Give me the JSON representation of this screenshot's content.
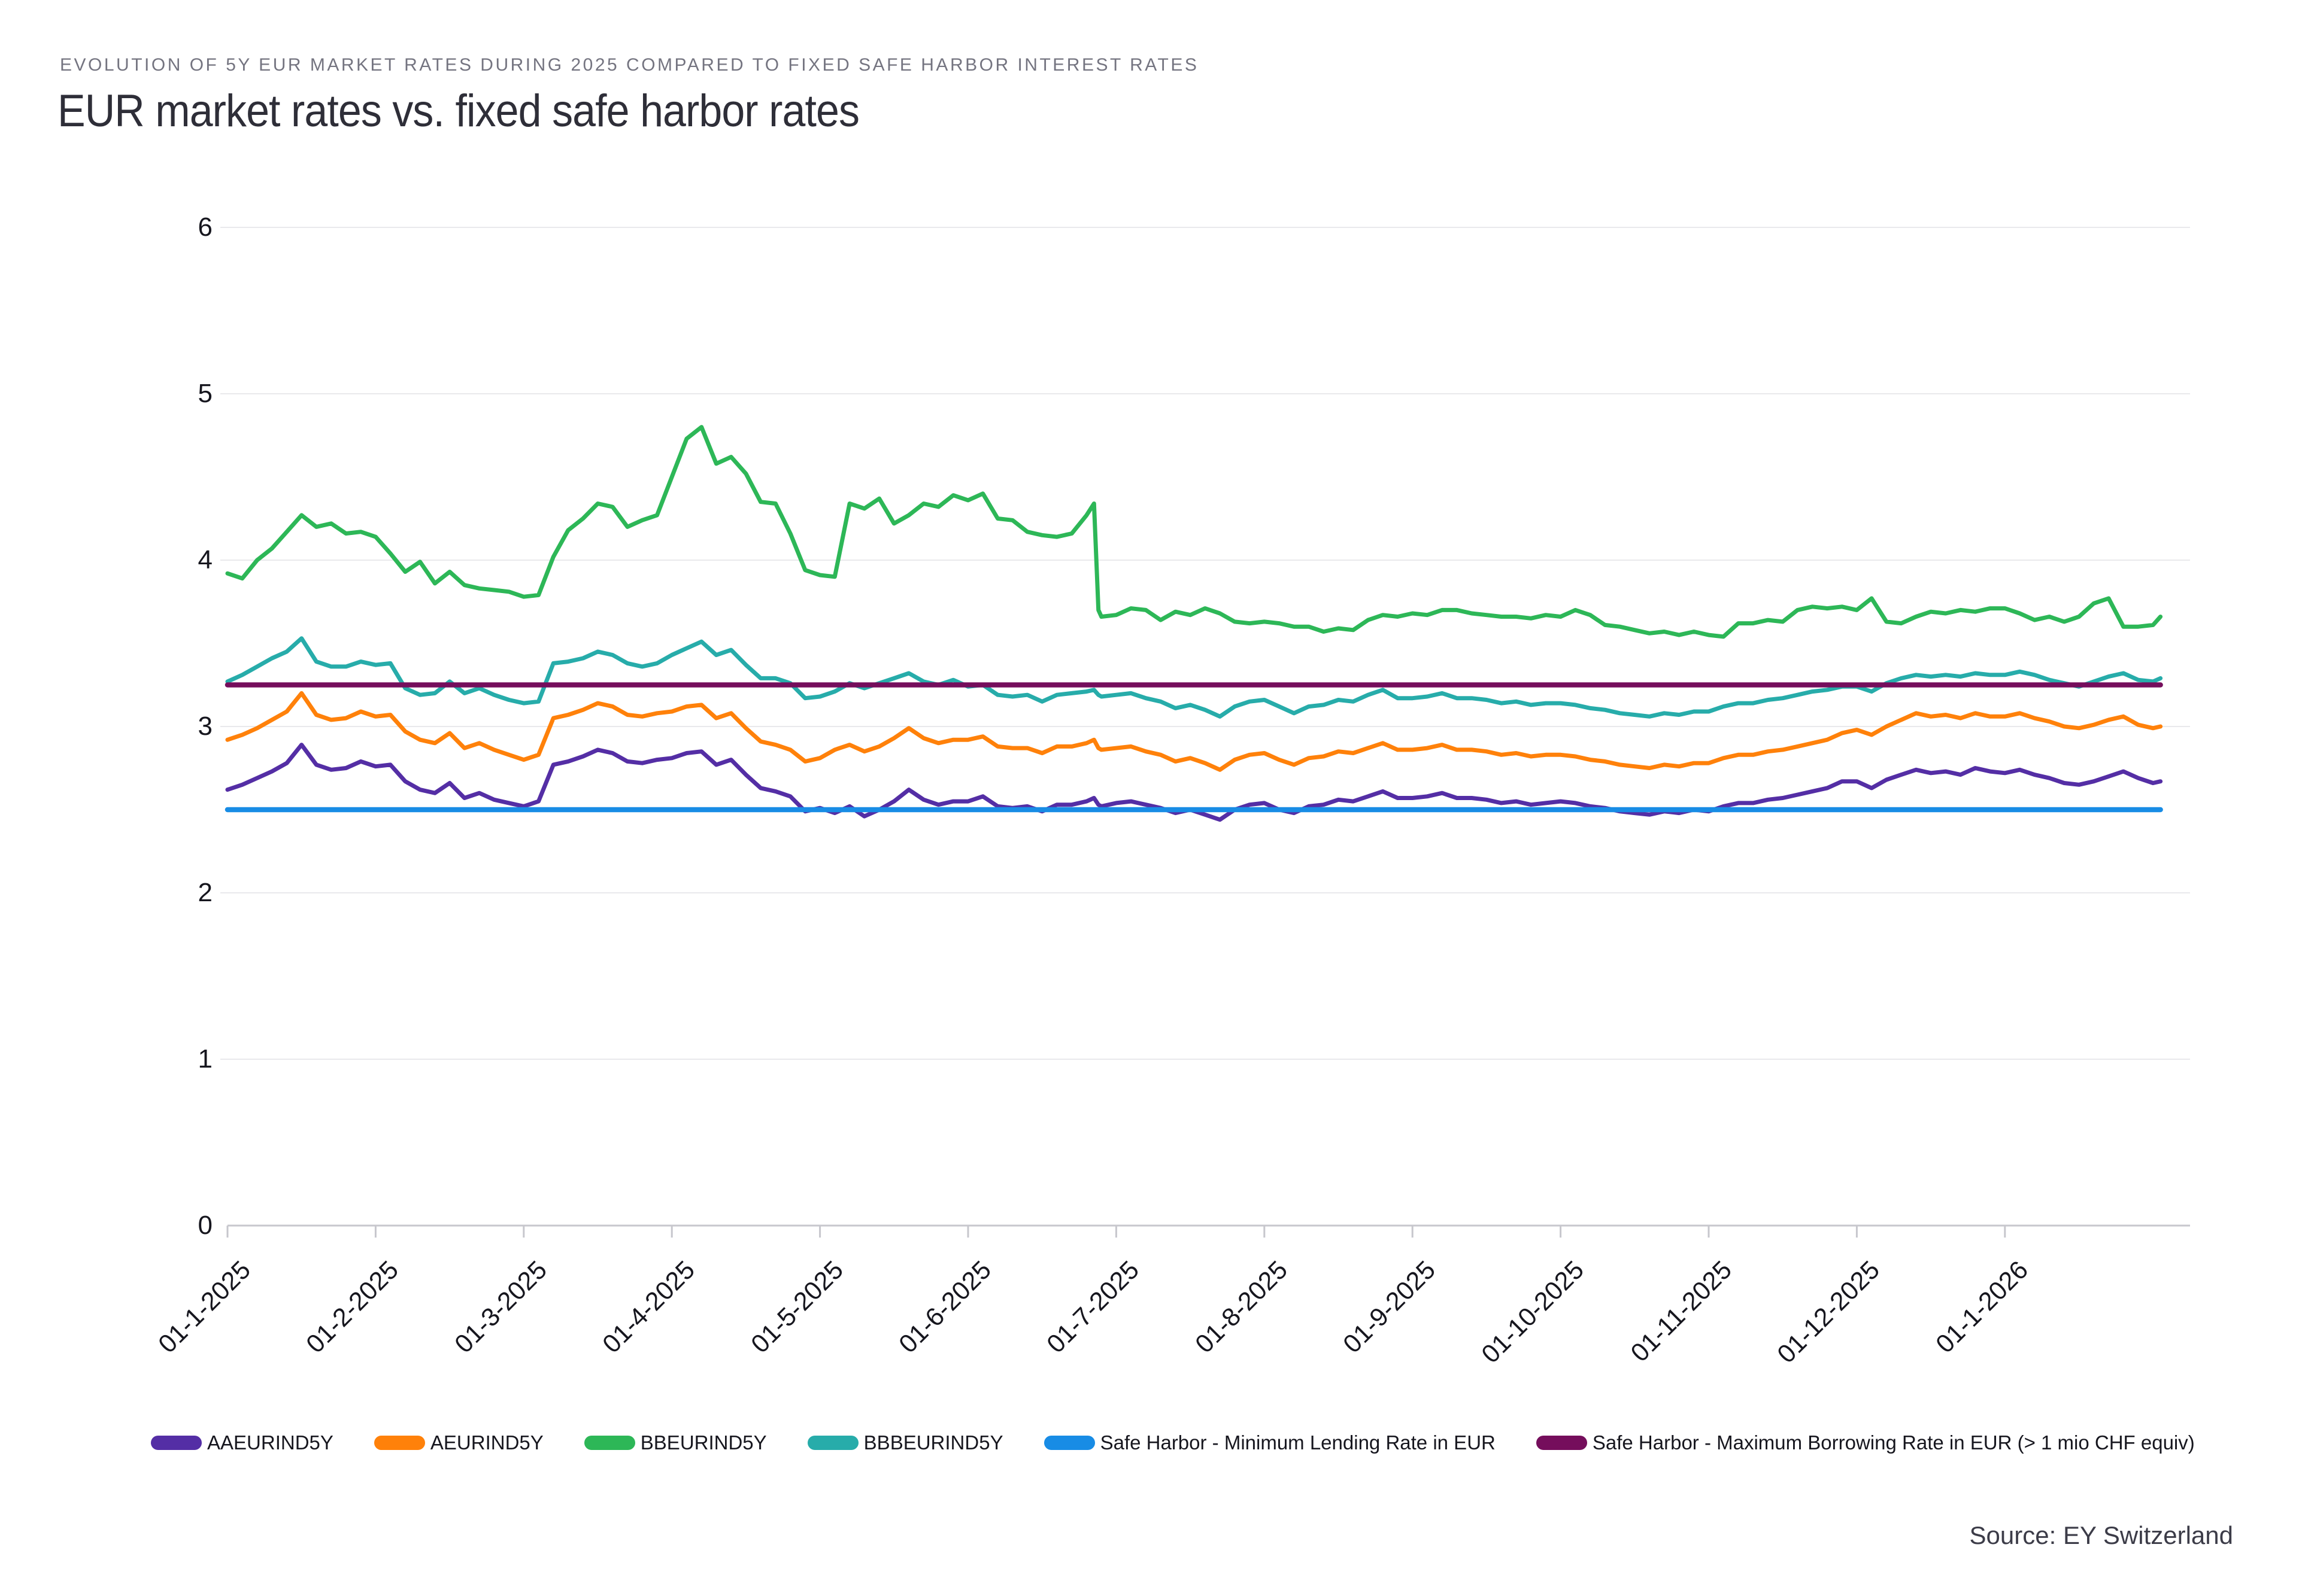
{
  "header": {
    "eyebrow": "EVOLUTION OF 5Y EUR MARKET RATES DURING 2025 COMPARED TO FIXED SAFE HARBOR INTEREST RATES",
    "title": "EUR market rates vs. fixed safe harbor rates"
  },
  "source": {
    "label": "Source: EY Switzerland"
  },
  "chart_data": {
    "type": "line",
    "title": "EUR market rates vs. fixed safe harbor rates",
    "xlabel": "",
    "ylabel": "",
    "x_unit": "months since 2025-01-01",
    "ylim": [
      0,
      6
    ],
    "y_ticks": [
      0,
      1,
      2,
      3,
      4,
      5,
      6
    ],
    "x_tick_positions": [
      0,
      1,
      2,
      3,
      4,
      5,
      6,
      7,
      8,
      9,
      10,
      11,
      12
    ],
    "x_tick_labels": [
      "01-1-2025",
      "01-2-2025",
      "01-3-2025",
      "01-4-2025",
      "01-5-2025",
      "01-6-2025",
      "01-7-2025",
      "01-8-2025",
      "01-9-2025",
      "01-10-2025",
      "01-11-2025",
      "01-12-2025",
      "01-1-2026"
    ],
    "grid": "horizontal",
    "legend_position": "bottom",
    "x": [
      0,
      0.1,
      0.2,
      0.3,
      0.4,
      0.5,
      0.6,
      0.7,
      0.8,
      0.9,
      1.0,
      1.1,
      1.2,
      1.3,
      1.4,
      1.5,
      1.6,
      1.7,
      1.8,
      1.9,
      2.0,
      2.1,
      2.2,
      2.3,
      2.4,
      2.5,
      2.6,
      2.7,
      2.8,
      2.9,
      3.0,
      3.1,
      3.2,
      3.3,
      3.4,
      3.5,
      3.6,
      3.7,
      3.8,
      3.9,
      4.0,
      4.1,
      4.2,
      4.3,
      4.4,
      4.5,
      4.6,
      4.7,
      4.8,
      4.9,
      5.0,
      5.1,
      5.2,
      5.3,
      5.4,
      5.5,
      5.6,
      5.7,
      5.8,
      5.85,
      5.88,
      5.9,
      6.0,
      6.1,
      6.2,
      6.3,
      6.4,
      6.5,
      6.6,
      6.7,
      6.8,
      6.9,
      7.0,
      7.1,
      7.2,
      7.3,
      7.4,
      7.5,
      7.6,
      7.7,
      7.8,
      7.9,
      8.0,
      8.1,
      8.2,
      8.3,
      8.4,
      8.5,
      8.6,
      8.7,
      8.8,
      8.9,
      9.0,
      9.1,
      9.2,
      9.3,
      9.4,
      9.5,
      9.6,
      9.7,
      9.8,
      9.9,
      10.0,
      10.1,
      10.2,
      10.3,
      10.4,
      10.5,
      10.6,
      10.7,
      10.8,
      10.9,
      11.0,
      11.1,
      11.2,
      11.3,
      11.4,
      11.5,
      11.6,
      11.7,
      11.8,
      11.9,
      12.0,
      12.1,
      12.2,
      12.3,
      12.4,
      12.5,
      12.6,
      12.7,
      12.8,
      12.9,
      13.0,
      13.05
    ],
    "series": [
      {
        "name": "AAEURIND5Y",
        "color": "#542EA5",
        "values": [
          2.62,
          2.65,
          2.69,
          2.73,
          2.78,
          2.89,
          2.77,
          2.74,
          2.75,
          2.79,
          2.76,
          2.77,
          2.67,
          2.62,
          2.6,
          2.66,
          2.57,
          2.6,
          2.56,
          2.54,
          2.52,
          2.55,
          2.77,
          2.79,
          2.82,
          2.86,
          2.84,
          2.79,
          2.78,
          2.8,
          2.81,
          2.84,
          2.85,
          2.77,
          2.8,
          2.71,
          2.63,
          2.61,
          2.58,
          2.49,
          2.51,
          2.48,
          2.52,
          2.46,
          2.5,
          2.55,
          2.62,
          2.56,
          2.53,
          2.55,
          2.55,
          2.58,
          2.52,
          2.51,
          2.52,
          2.49,
          2.53,
          2.53,
          2.55,
          2.57,
          2.53,
          2.52,
          2.54,
          2.55,
          2.53,
          2.51,
          2.48,
          2.5,
          2.47,
          2.44,
          2.5,
          2.53,
          2.54,
          2.5,
          2.48,
          2.52,
          2.53,
          2.56,
          2.55,
          2.58,
          2.61,
          2.57,
          2.57,
          2.58,
          2.6,
          2.57,
          2.57,
          2.56,
          2.54,
          2.55,
          2.53,
          2.54,
          2.55,
          2.54,
          2.52,
          2.51,
          2.49,
          2.48,
          2.47,
          2.49,
          2.48,
          2.5,
          2.49,
          2.52,
          2.54,
          2.54,
          2.56,
          2.57,
          2.59,
          2.61,
          2.63,
          2.67,
          2.67,
          2.63,
          2.68,
          2.71,
          2.74,
          2.72,
          2.73,
          2.71,
          2.75,
          2.73,
          2.72,
          2.74,
          2.71,
          2.69,
          2.66,
          2.65,
          2.67,
          2.7,
          2.73,
          2.69,
          2.66,
          2.67
        ]
      },
      {
        "name": "AEURIND5Y",
        "color": "#FF810A",
        "values": [
          2.92,
          2.95,
          2.99,
          3.04,
          3.09,
          3.2,
          3.07,
          3.04,
          3.05,
          3.09,
          3.06,
          3.07,
          2.97,
          2.92,
          2.9,
          2.96,
          2.87,
          2.9,
          2.86,
          2.83,
          2.8,
          2.83,
          3.05,
          3.07,
          3.1,
          3.14,
          3.12,
          3.07,
          3.06,
          3.08,
          3.09,
          3.12,
          3.13,
          3.05,
          3.08,
          2.99,
          2.91,
          2.89,
          2.86,
          2.79,
          2.81,
          2.86,
          2.89,
          2.85,
          2.88,
          2.93,
          2.99,
          2.93,
          2.9,
          2.92,
          2.92,
          2.94,
          2.88,
          2.87,
          2.87,
          2.84,
          2.88,
          2.88,
          2.9,
          2.92,
          2.87,
          2.86,
          2.87,
          2.88,
          2.85,
          2.83,
          2.79,
          2.81,
          2.78,
          2.74,
          2.8,
          2.83,
          2.84,
          2.8,
          2.77,
          2.81,
          2.82,
          2.85,
          2.84,
          2.87,
          2.9,
          2.86,
          2.86,
          2.87,
          2.89,
          2.86,
          2.86,
          2.85,
          2.83,
          2.84,
          2.82,
          2.83,
          2.83,
          2.82,
          2.8,
          2.79,
          2.77,
          2.76,
          2.75,
          2.77,
          2.76,
          2.78,
          2.78,
          2.81,
          2.83,
          2.83,
          2.85,
          2.86,
          2.88,
          2.9,
          2.92,
          2.96,
          2.98,
          2.95,
          3.0,
          3.04,
          3.08,
          3.06,
          3.07,
          3.05,
          3.08,
          3.06,
          3.06,
          3.08,
          3.05,
          3.03,
          3.0,
          2.99,
          3.01,
          3.04,
          3.06,
          3.01,
          2.99,
          3.0
        ]
      },
      {
        "name": "BBEURIND5Y",
        "color": "#2DB757",
        "values": [
          3.92,
          3.89,
          4.0,
          4.07,
          4.17,
          4.27,
          4.2,
          4.22,
          4.16,
          4.17,
          4.14,
          4.04,
          3.93,
          3.99,
          3.86,
          3.93,
          3.85,
          3.83,
          3.82,
          3.81,
          3.78,
          3.79,
          4.02,
          4.18,
          4.25,
          4.34,
          4.32,
          4.2,
          4.24,
          4.27,
          4.5,
          4.73,
          4.8,
          4.58,
          4.62,
          4.52,
          4.35,
          4.34,
          4.16,
          3.94,
          3.91,
          3.9,
          4.34,
          4.31,
          4.37,
          4.22,
          4.27,
          4.34,
          4.32,
          4.39,
          4.36,
          4.4,
          4.25,
          4.24,
          4.17,
          4.15,
          4.14,
          4.16,
          4.27,
          4.34,
          3.7,
          3.66,
          3.67,
          3.71,
          3.7,
          3.64,
          3.69,
          3.67,
          3.71,
          3.68,
          3.63,
          3.62,
          3.63,
          3.62,
          3.6,
          3.6,
          3.57,
          3.59,
          3.58,
          3.64,
          3.67,
          3.66,
          3.68,
          3.67,
          3.7,
          3.7,
          3.68,
          3.67,
          3.66,
          3.66,
          3.65,
          3.67,
          3.66,
          3.7,
          3.67,
          3.61,
          3.6,
          3.58,
          3.56,
          3.57,
          3.55,
          3.57,
          3.55,
          3.54,
          3.62,
          3.62,
          3.64,
          3.63,
          3.7,
          3.72,
          3.71,
          3.72,
          3.7,
          3.77,
          3.63,
          3.62,
          3.66,
          3.69,
          3.68,
          3.7,
          3.69,
          3.71,
          3.71,
          3.68,
          3.64,
          3.66,
          3.63,
          3.66,
          3.74,
          3.77,
          3.6,
          3.6,
          3.61,
          3.66
        ]
      },
      {
        "name": "BBBEURIND5Y",
        "color": "#27ACAA",
        "values": [
          3.27,
          3.31,
          3.36,
          3.41,
          3.45,
          3.53,
          3.39,
          3.36,
          3.36,
          3.39,
          3.37,
          3.38,
          3.23,
          3.19,
          3.2,
          3.27,
          3.2,
          3.23,
          3.19,
          3.16,
          3.14,
          3.15,
          3.38,
          3.39,
          3.41,
          3.45,
          3.43,
          3.38,
          3.36,
          3.38,
          3.43,
          3.47,
          3.51,
          3.43,
          3.46,
          3.37,
          3.29,
          3.29,
          3.26,
          3.17,
          3.18,
          3.21,
          3.26,
          3.23,
          3.26,
          3.29,
          3.32,
          3.27,
          3.25,
          3.28,
          3.24,
          3.25,
          3.19,
          3.18,
          3.19,
          3.15,
          3.19,
          3.2,
          3.21,
          3.22,
          3.19,
          3.18,
          3.19,
          3.2,
          3.17,
          3.15,
          3.11,
          3.13,
          3.1,
          3.06,
          3.12,
          3.15,
          3.16,
          3.12,
          3.08,
          3.12,
          3.13,
          3.16,
          3.15,
          3.19,
          3.22,
          3.17,
          3.17,
          3.18,
          3.2,
          3.17,
          3.17,
          3.16,
          3.14,
          3.15,
          3.13,
          3.14,
          3.14,
          3.13,
          3.11,
          3.1,
          3.08,
          3.07,
          3.06,
          3.08,
          3.07,
          3.09,
          3.09,
          3.12,
          3.14,
          3.14,
          3.16,
          3.17,
          3.19,
          3.21,
          3.22,
          3.24,
          3.24,
          3.21,
          3.26,
          3.29,
          3.31,
          3.3,
          3.31,
          3.3,
          3.32,
          3.31,
          3.31,
          3.33,
          3.31,
          3.28,
          3.26,
          3.24,
          3.27,
          3.3,
          3.32,
          3.28,
          3.27,
          3.29
        ]
      },
      {
        "name": "Safe Harbor - Minimum Lending Rate in EUR",
        "color": "#188CE5",
        "constant": 2.5
      },
      {
        "name": "Safe Harbor - Maximum Borrowing Rate in EUR (> 1 mio CHF equiv)",
        "color": "#750E5C",
        "constant": 3.25
      }
    ]
  }
}
